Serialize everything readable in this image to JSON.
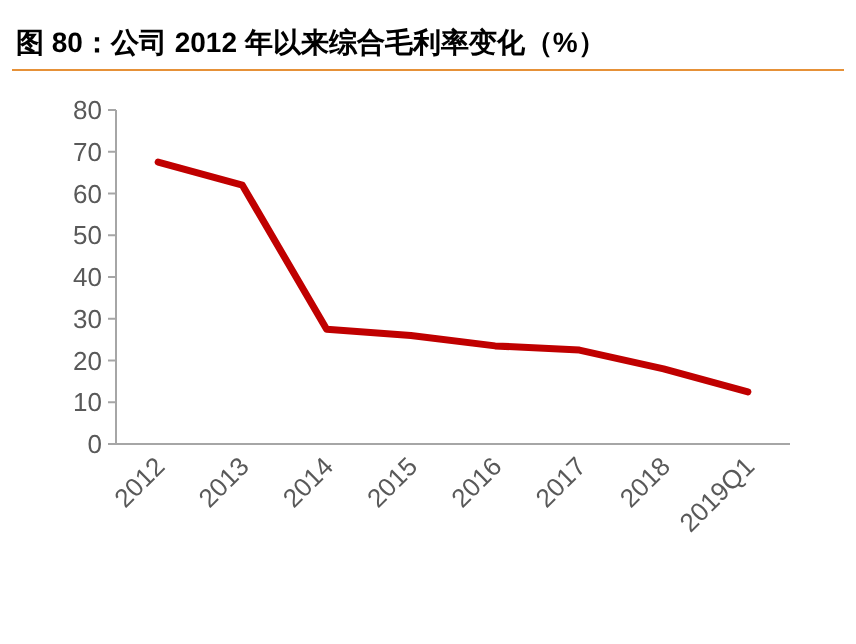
{
  "chart_data": {
    "type": "line",
    "title": "图 80：公司 2012 年以来综合毛利率变化（%）",
    "categories": [
      "2012",
      "2013",
      "2014",
      "2015",
      "2016",
      "2017",
      "2018",
      "2019Q1"
    ],
    "series": [
      {
        "color": "#c00000",
        "values": [
          67.5,
          62,
          27.5,
          26,
          23.5,
          22.5,
          18,
          12.5
        ]
      }
    ],
    "ylim": [
      0,
      80
    ],
    "yticks": [
      0,
      10,
      20,
      30,
      40,
      50,
      60,
      70,
      80
    ]
  }
}
